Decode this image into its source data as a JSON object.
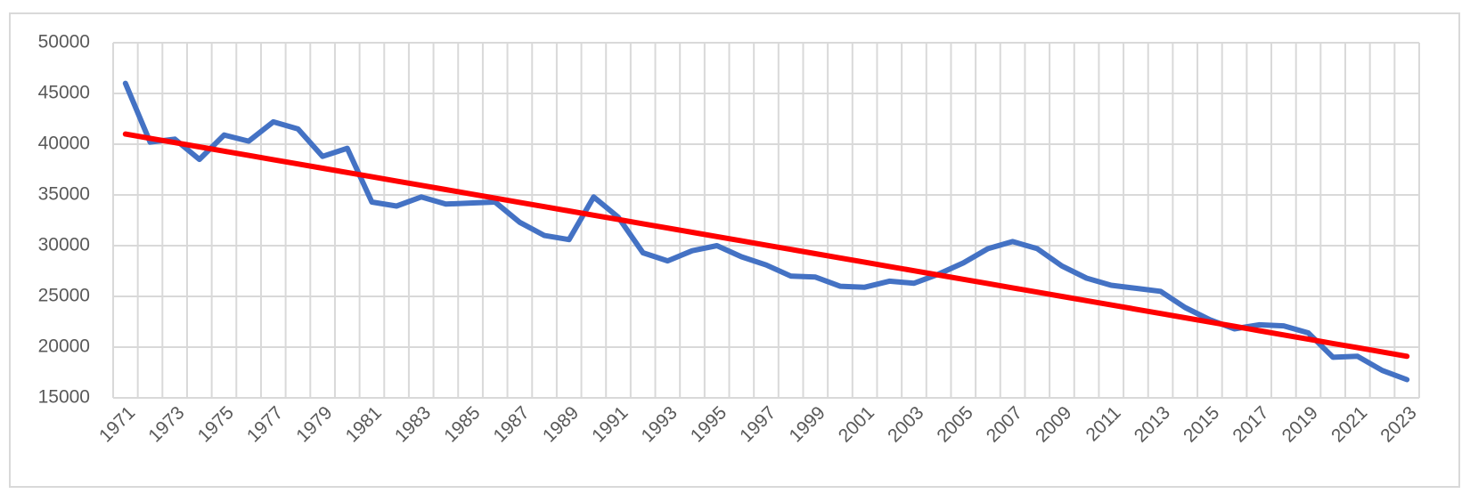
{
  "chart_data": {
    "type": "line",
    "categories": [
      "1971",
      null,
      "1973",
      null,
      "1975",
      null,
      "1977",
      null,
      "1979",
      null,
      "1981",
      null,
      "1983",
      null,
      "1985",
      null,
      "1987",
      null,
      "1989",
      null,
      "1991",
      null,
      "1993",
      null,
      "1995",
      null,
      "1997",
      null,
      "1999",
      null,
      "2001",
      null,
      "2003",
      null,
      "2005",
      null,
      "2007",
      null,
      "2009",
      null,
      "2011",
      null,
      "2013",
      null,
      "2015",
      null,
      "2017",
      null,
      "2019",
      null,
      "2021",
      null,
      "2023"
    ],
    "series": [
      {
        "color": "#4472c4",
        "values": [
          46000,
          40200,
          40500,
          38500,
          40900,
          40300,
          42200,
          41500,
          38800,
          39600,
          34300,
          33900,
          34800,
          34100,
          34200,
          34300,
          32300,
          31000,
          30600,
          34800,
          32800,
          29300,
          28500,
          29500,
          30000,
          28900,
          28100,
          27000,
          26900,
          26000,
          25900,
          26500,
          26300,
          27200,
          28300,
          29700,
          30400,
          29700,
          28000,
          26800,
          26100,
          25800,
          25500,
          23900,
          22700,
          21800,
          22200,
          22100,
          21400,
          19000,
          19100,
          17700,
          16800
        ]
      },
      {
        "color": "#ff0000",
        "values": [
          41000,
          40579,
          40158,
          39737,
          39315,
          38894,
          38473,
          38052,
          37631,
          37210,
          36789,
          36367,
          35946,
          35525,
          35104,
          34683,
          34262,
          33841,
          33419,
          32998,
          32577,
          32156,
          31735,
          31314,
          30893,
          30471,
          30050,
          29629,
          29208,
          28787,
          28366,
          27945,
          27523,
          27102,
          26681,
          26260,
          25839,
          25418,
          24997,
          24575,
          24154,
          23733,
          23312,
          22891,
          22470,
          22049,
          21627,
          21206,
          20785,
          20364,
          19943,
          19522,
          19100
        ]
      }
    ],
    "ylim": [
      15000,
      50000
    ],
    "yticks": [
      15000,
      20000,
      25000,
      30000,
      35000,
      40000,
      45000,
      50000
    ],
    "grid": true
  }
}
